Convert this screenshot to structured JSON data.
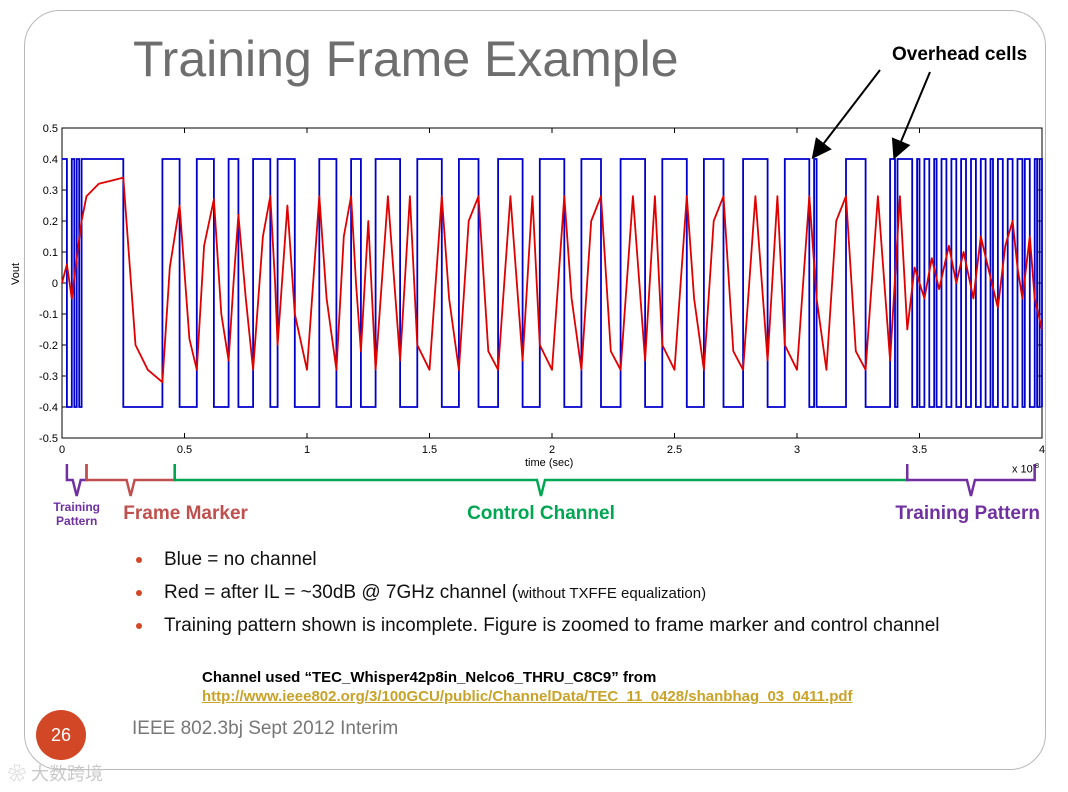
{
  "slide": {
    "title": "Training Frame Example",
    "callout": "Overhead cells",
    "page_number": "26",
    "footer": "IEEE 802.3bj Sept 2012 Interim",
    "watermark": "大数跨境"
  },
  "segments": [
    {
      "label_lines": [
        "Training",
        "Pattern"
      ],
      "color": "#7030a0",
      "x_start": 0.02,
      "x_end": 0.1
    },
    {
      "label_lines": [
        "Frame Marker"
      ],
      "color": "#c0504d",
      "x_start": 0.1,
      "x_end": 0.46
    },
    {
      "label_lines": [
        "Control Channel"
      ],
      "color": "#00a651",
      "x_start": 0.46,
      "x_end": 3.45
    },
    {
      "label_lines": [
        "Training Pattern"
      ],
      "color": "#7030a0",
      "x_start": 3.45,
      "x_end": 3.97
    }
  ],
  "bullets": [
    {
      "text": "Blue = no channel",
      "small": ""
    },
    {
      "text": "Red = after IL = ~30dB @ 7GHz channel (",
      "small": "without TXFFE equalization)"
    },
    {
      "text": "Training pattern shown is incomplete.  Figure is zoomed to frame marker and control channel",
      "small": ""
    }
  ],
  "channel_used": "Channel used “TEC_Whisper42p8in_Nelco6_THRU_C8C9” from",
  "channel_link": "http://www.ieee802.org/3/100GCU/public/ChannelData/TEC_11_0428/shanbhag_03_0411.pdf",
  "chart_data": {
    "type": "line",
    "xlabel": "time (sec)",
    "ylabel": "Vout",
    "x_scale_label": "x 10",
    "x_scale_exponent": "-8",
    "xlim": [
      0,
      4
    ],
    "ylim": [
      -0.5,
      0.5
    ],
    "xticks": [
      "0",
      "0.5",
      "1",
      "1.5",
      "2",
      "2.5",
      "3",
      "3.5",
      "4"
    ],
    "yticks": [
      "0.5",
      "0.4",
      "0.3",
      "0.2",
      "0.1",
      "0",
      "-0.1",
      "-0.2",
      "-0.3",
      "-0.4",
      "-0.5"
    ],
    "annotation_targets": [
      {
        "x": 3.07,
        "y": 0.41
      },
      {
        "x": 3.4,
        "y": 0.41
      }
    ],
    "series": [
      {
        "color": "#0000cc",
        "high": 0.4,
        "low": -0.4,
        "transitions": [
          0.0,
          0.02,
          0.04,
          0.05,
          0.06,
          0.07,
          0.08,
          0.25,
          0.41,
          0.48,
          0.55,
          0.62,
          0.68,
          0.72,
          0.78,
          0.85,
          0.88,
          0.95,
          1.05,
          1.12,
          1.18,
          1.22,
          1.28,
          1.38,
          1.45,
          1.55,
          1.62,
          1.7,
          1.78,
          1.88,
          1.95,
          2.05,
          2.12,
          2.2,
          2.28,
          2.38,
          2.45,
          2.55,
          2.62,
          2.7,
          2.78,
          2.88,
          2.95,
          3.05,
          3.07,
          3.08,
          3.2,
          3.28,
          3.38,
          3.4,
          3.41,
          3.47,
          3.49,
          3.5,
          3.52,
          3.54,
          3.56,
          3.57,
          3.59,
          3.61,
          3.63,
          3.65,
          3.67,
          3.69,
          3.71,
          3.73,
          3.75,
          3.77,
          3.79,
          3.8,
          3.82,
          3.84,
          3.86,
          3.88,
          3.9,
          3.92,
          3.93,
          3.95,
          3.97,
          3.98,
          3.99,
          4.0
        ]
      },
      {
        "color": "#e00000",
        "x": [
          0.0,
          0.02,
          0.04,
          0.06,
          0.08,
          0.1,
          0.15,
          0.2,
          0.25,
          0.3,
          0.35,
          0.41,
          0.44,
          0.48,
          0.52,
          0.55,
          0.58,
          0.62,
          0.65,
          0.68,
          0.7,
          0.72,
          0.75,
          0.78,
          0.82,
          0.85,
          0.87,
          0.88,
          0.92,
          0.95,
          1.0,
          1.05,
          1.08,
          1.12,
          1.15,
          1.18,
          1.2,
          1.22,
          1.25,
          1.28,
          1.33,
          1.38,
          1.42,
          1.45,
          1.5,
          1.55,
          1.58,
          1.62,
          1.66,
          1.7,
          1.74,
          1.78,
          1.83,
          1.88,
          1.92,
          1.95,
          2.0,
          2.05,
          2.08,
          2.12,
          2.16,
          2.2,
          2.24,
          2.28,
          2.33,
          2.38,
          2.42,
          2.45,
          2.5,
          2.55,
          2.58,
          2.62,
          2.66,
          2.7,
          2.74,
          2.78,
          2.83,
          2.88,
          2.92,
          2.95,
          3.0,
          3.05,
          3.08,
          3.12,
          3.16,
          3.2,
          3.24,
          3.28,
          3.33,
          3.38,
          3.42,
          3.45,
          3.48,
          3.52,
          3.55,
          3.58,
          3.62,
          3.65,
          3.68,
          3.72,
          3.75,
          3.78,
          3.82,
          3.85,
          3.88,
          3.9,
          3.92,
          3.95,
          3.97,
          4.0
        ],
        "y": [
          0.0,
          0.06,
          -0.05,
          0.08,
          0.2,
          0.28,
          0.32,
          0.33,
          0.34,
          -0.2,
          -0.28,
          -0.32,
          0.05,
          0.25,
          -0.18,
          -0.28,
          0.12,
          0.27,
          -0.1,
          -0.25,
          0.0,
          0.22,
          -0.05,
          -0.28,
          0.15,
          0.28,
          0.0,
          -0.2,
          0.25,
          -0.1,
          -0.28,
          0.28,
          -0.05,
          -0.28,
          0.15,
          0.28,
          0.0,
          -0.22,
          0.2,
          -0.28,
          0.28,
          -0.25,
          0.28,
          -0.2,
          -0.28,
          0.28,
          -0.05,
          -0.28,
          0.2,
          0.28,
          -0.22,
          -0.28,
          0.28,
          -0.25,
          0.28,
          -0.2,
          -0.28,
          0.28,
          -0.05,
          -0.28,
          0.2,
          0.28,
          -0.22,
          -0.28,
          0.28,
          -0.25,
          0.28,
          -0.2,
          -0.28,
          0.28,
          -0.05,
          -0.28,
          0.2,
          0.28,
          -0.22,
          -0.28,
          0.28,
          -0.25,
          0.28,
          -0.2,
          -0.28,
          0.28,
          -0.05,
          -0.28,
          0.2,
          0.28,
          -0.22,
          -0.28,
          0.28,
          -0.25,
          0.28,
          -0.15,
          0.05,
          -0.05,
          0.08,
          -0.02,
          0.12,
          0.0,
          0.1,
          -0.05,
          0.15,
          0.05,
          -0.08,
          0.12,
          0.2,
          0.05,
          -0.05,
          0.15,
          -0.05,
          -0.15
        ]
      }
    ]
  }
}
